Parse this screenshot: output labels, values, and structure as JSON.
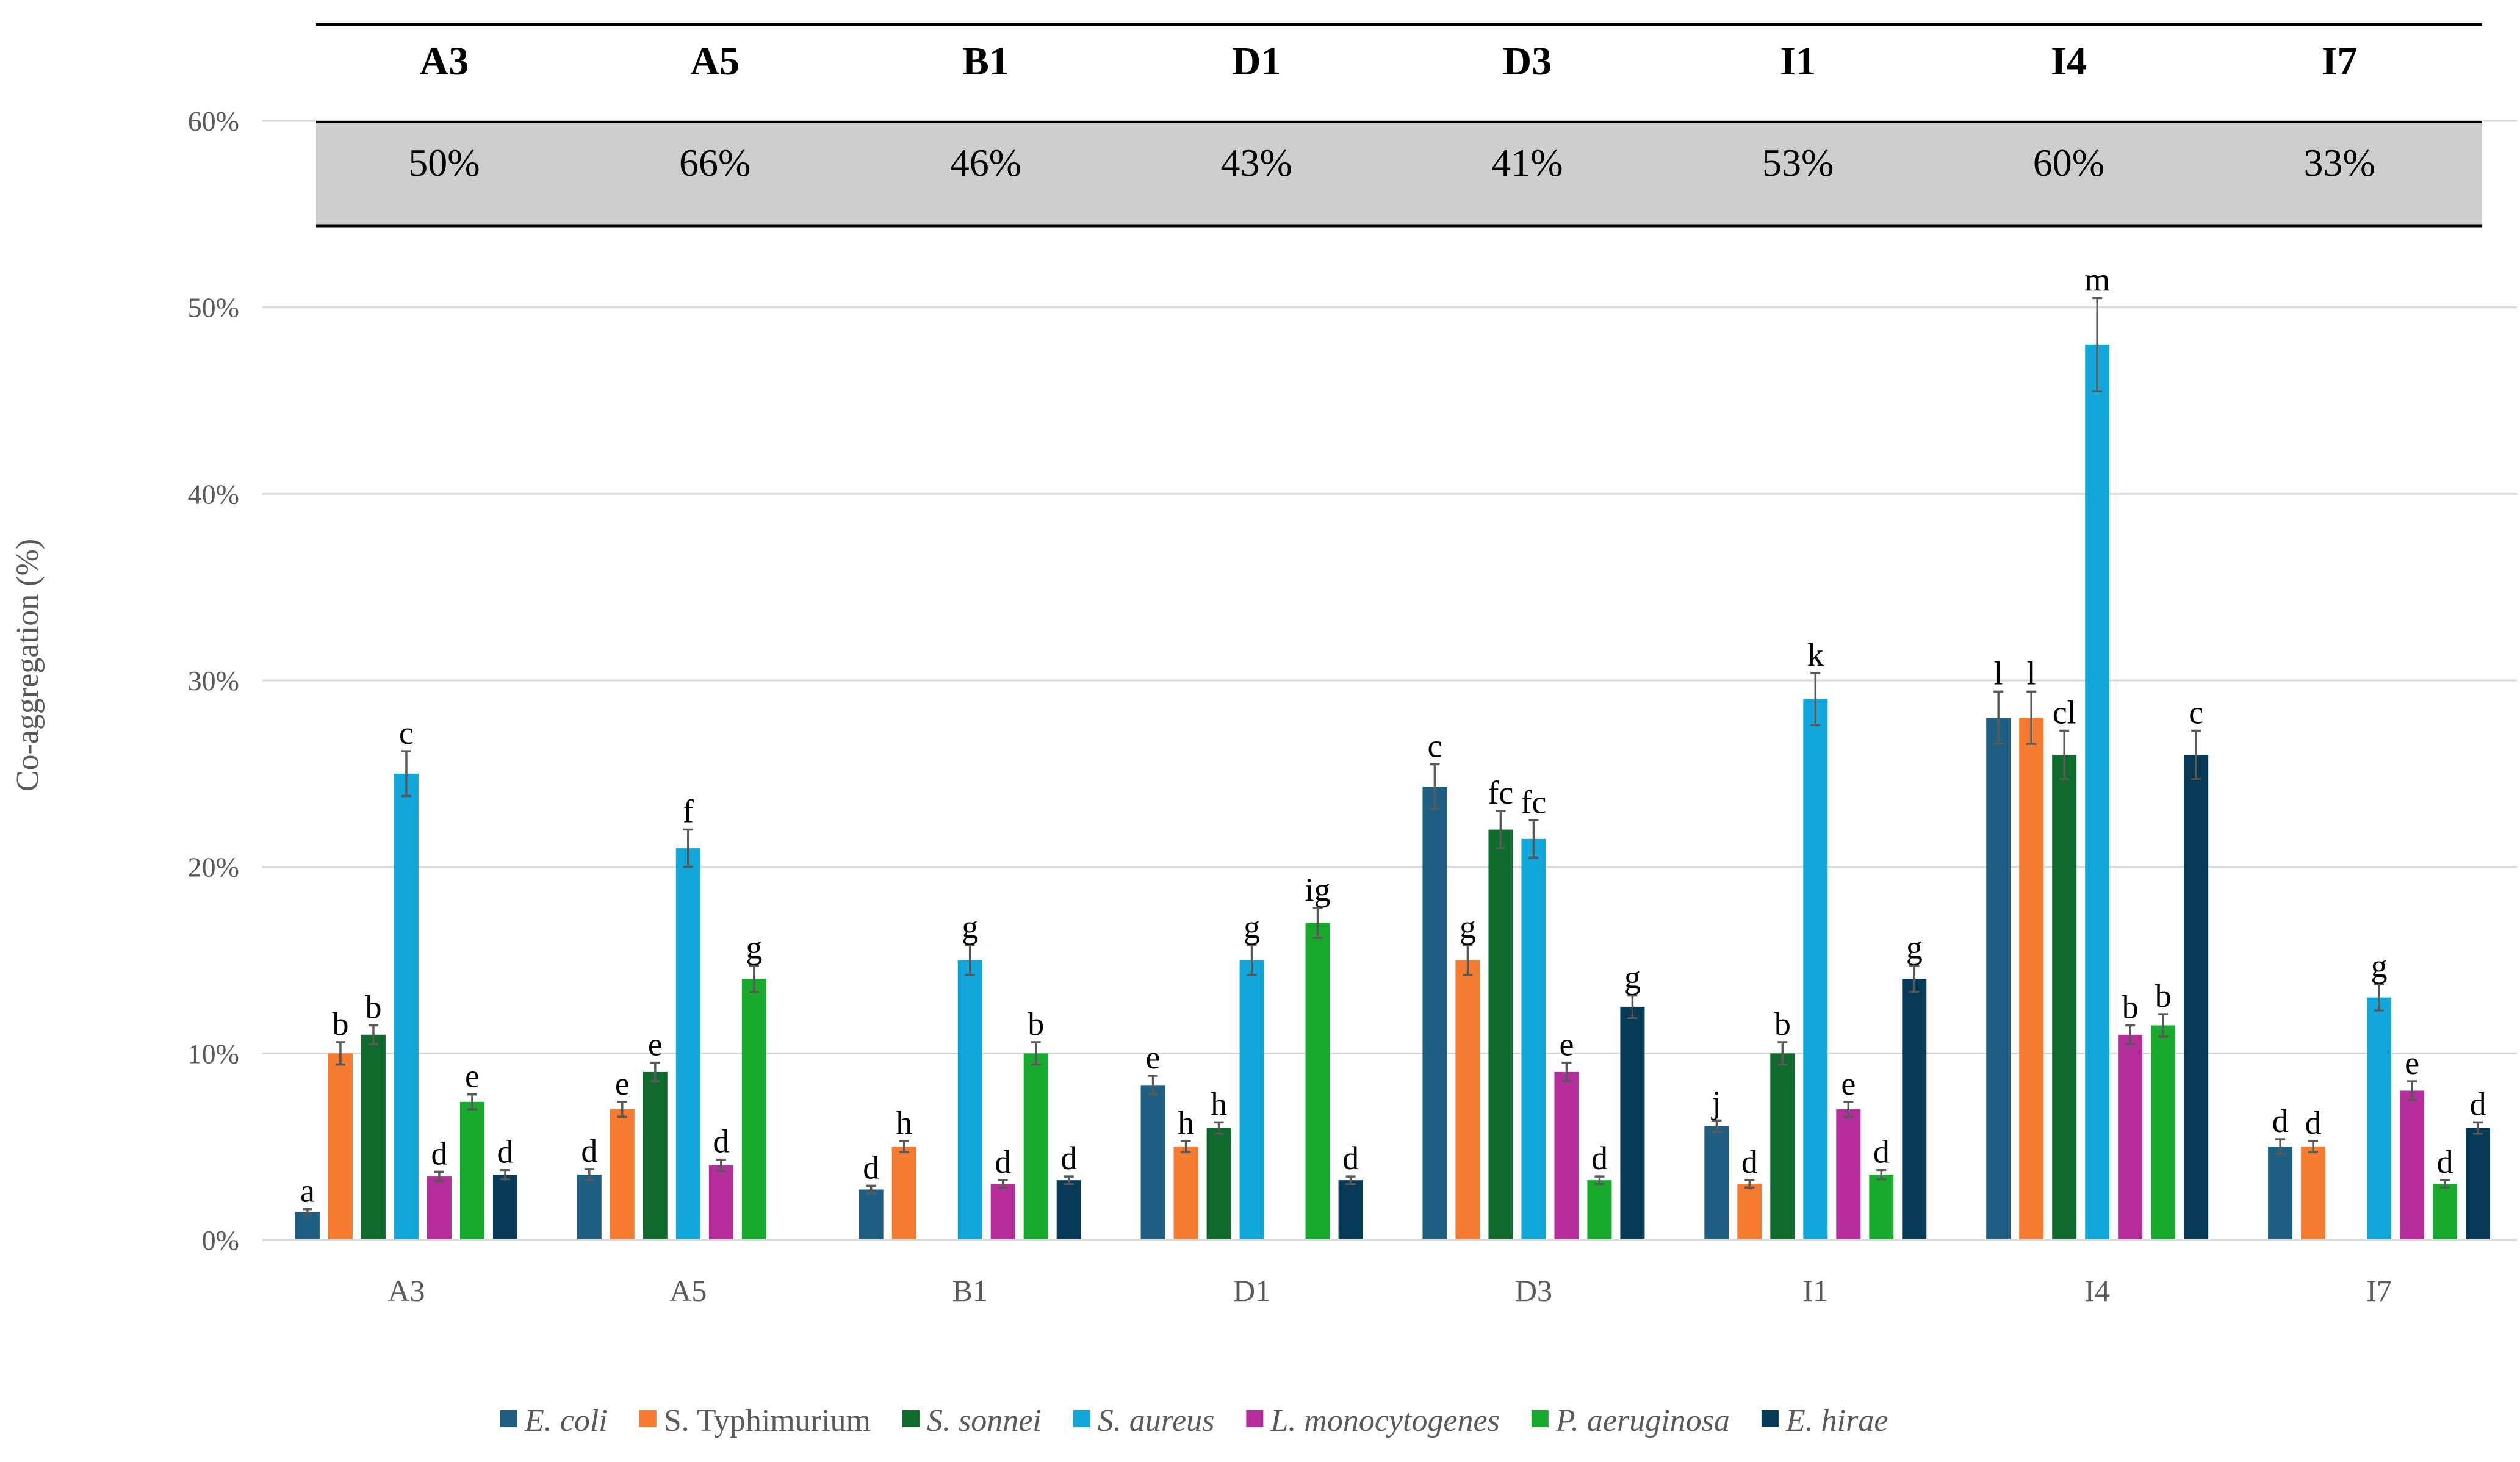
{
  "chart_data": {
    "type": "bar",
    "ylabel": "Co-aggregation (%)",
    "ylim": [
      0,
      60
    ],
    "yticks": [
      "0%",
      "10%",
      "20%",
      "30%",
      "40%",
      "50%",
      "60%"
    ],
    "categories": [
      "A3",
      "A5",
      "B1",
      "D1",
      "D3",
      "I1",
      "I4",
      "I7"
    ],
    "header_table": {
      "strains": [
        "A3",
        "A5",
        "B1",
        "D1",
        "D3",
        "I1",
        "I4",
        "I7"
      ],
      "averages": [
        "50%",
        "66%",
        "46%",
        "43%",
        "41%",
        "53%",
        "60%",
        "33%"
      ]
    },
    "series": [
      {
        "name": "E. coli",
        "italic": true,
        "color": "#1F5F84",
        "values": [
          1.5,
          3.5,
          2.7,
          8.3,
          24.3,
          6.1,
          28.0,
          5.0
        ],
        "errors": [
          0.15,
          0.3,
          0.2,
          0.5,
          1.2,
          0.3,
          1.4,
          0.4
        ],
        "letters": [
          "a",
          "d",
          "d",
          "e",
          "c",
          "j",
          "l",
          "d"
        ]
      },
      {
        "name": "S. Typhimurium",
        "italic": false,
        "color": "#F47B30",
        "values": [
          10.0,
          7.0,
          5.0,
          5.0,
          15.0,
          3.0,
          28.0,
          5.0
        ],
        "errors": [
          0.6,
          0.4,
          0.3,
          0.3,
          0.8,
          0.2,
          1.4,
          0.3
        ],
        "letters": [
          "b",
          "e",
          "h",
          "h",
          "g",
          "d",
          "l",
          "d"
        ]
      },
      {
        "name": "S. sonnei",
        "italic": true,
        "color": "#0F6B2D",
        "values": [
          11.0,
          9.0,
          null,
          6.0,
          22.0,
          10.0,
          26.0,
          null
        ],
        "errors": [
          0.5,
          0.5,
          null,
          0.3,
          1.0,
          0.6,
          1.3,
          null
        ],
        "letters": [
          "b",
          "e",
          "",
          "h",
          "fc",
          "b",
          "cl",
          ""
        ]
      },
      {
        "name": "S. aureus",
        "italic": true,
        "color": "#12A7DB",
        "values": [
          25.0,
          21.0,
          15.0,
          15.0,
          21.5,
          29.0,
          48.0,
          13.0
        ],
        "errors": [
          1.2,
          1.0,
          0.8,
          0.8,
          1.0,
          1.4,
          2.5,
          0.7
        ],
        "letters": [
          "c",
          "f",
          "g",
          "g",
          "fc",
          "k",
          "m",
          "g"
        ]
      },
      {
        "name": "L. monocytogenes",
        "italic": true,
        "color": "#B52E9B",
        "values": [
          3.4,
          4.0,
          3.0,
          null,
          9.0,
          7.0,
          11.0,
          8.0
        ],
        "errors": [
          0.25,
          0.3,
          0.2,
          null,
          0.5,
          0.4,
          0.5,
          0.5
        ],
        "letters": [
          "d",
          "d",
          "d",
          "",
          "e",
          "e",
          "b",
          "e"
        ]
      },
      {
        "name": "P. aeruginosa",
        "italic": true,
        "color": "#17AA2C",
        "values": [
          7.4,
          14.0,
          10.0,
          17.0,
          3.2,
          3.5,
          11.5,
          3.0
        ],
        "errors": [
          0.4,
          0.7,
          0.6,
          0.8,
          0.2,
          0.25,
          0.6,
          0.2
        ],
        "letters": [
          "e",
          "g",
          "b",
          "ig",
          "d",
          "d",
          "b",
          "d"
        ]
      },
      {
        "name": "E. hirae",
        "italic": true,
        "color": "#073A56",
        "values": [
          3.5,
          null,
          3.2,
          3.2,
          12.5,
          14.0,
          26.0,
          6.0
        ],
        "errors": [
          0.25,
          null,
          0.2,
          0.2,
          0.6,
          0.7,
          1.3,
          0.3
        ],
        "letters": [
          "d",
          "",
          "d",
          "d",
          "g",
          "g",
          "c",
          "d"
        ]
      }
    ]
  }
}
